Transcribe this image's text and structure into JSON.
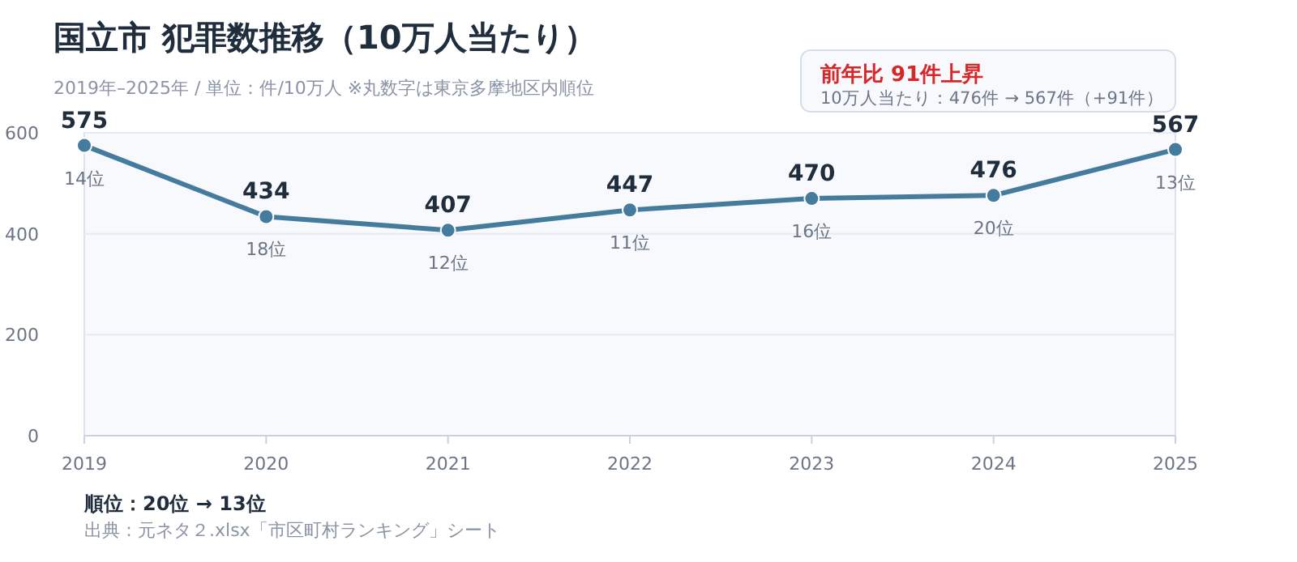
{
  "chart_data": {
    "type": "line",
    "title": "国立市  犯罪数推移（10万人当たり）",
    "subtitle": "2019年–2025年  /  単位：件/10万人    ※丸数字は東京多摩地区内順位",
    "categories": [
      "2019",
      "2020",
      "2021",
      "2022",
      "2023",
      "2024",
      "2025"
    ],
    "series": [
      {
        "color": "#457b9d",
        "values": [
          575,
          434,
          407,
          447,
          470,
          476,
          567
        ]
      }
    ],
    "ylim": [
      0,
      600
    ],
    "yticks": [
      0,
      200,
      400,
      600
    ],
    "grid": "y",
    "marker": "circle",
    "line_style": "solid",
    "data_labels": true,
    "annotations": [
      "前年比  91件上昇",
      "10万人当たり：476件  →  567件（+91件）",
      {
        "text": "14位",
        "x": "2019",
        "y": 575
      },
      {
        "text": "18位",
        "x": "2020",
        "y": 434
      },
      {
        "text": "12位",
        "x": "2021",
        "y": 407
      },
      {
        "text": "11位",
        "x": "2022",
        "y": 447
      },
      {
        "text": "16位",
        "x": "2023",
        "y": 470
      },
      {
        "text": "20位",
        "x": "2024",
        "y": 476
      },
      {
        "text": "13位",
        "x": "2025",
        "y": 567
      },
      "順位：20位  →  13位",
      "出典：元ネタ２.xlsx「市区町村ランキング」シート"
    ]
  }
}
